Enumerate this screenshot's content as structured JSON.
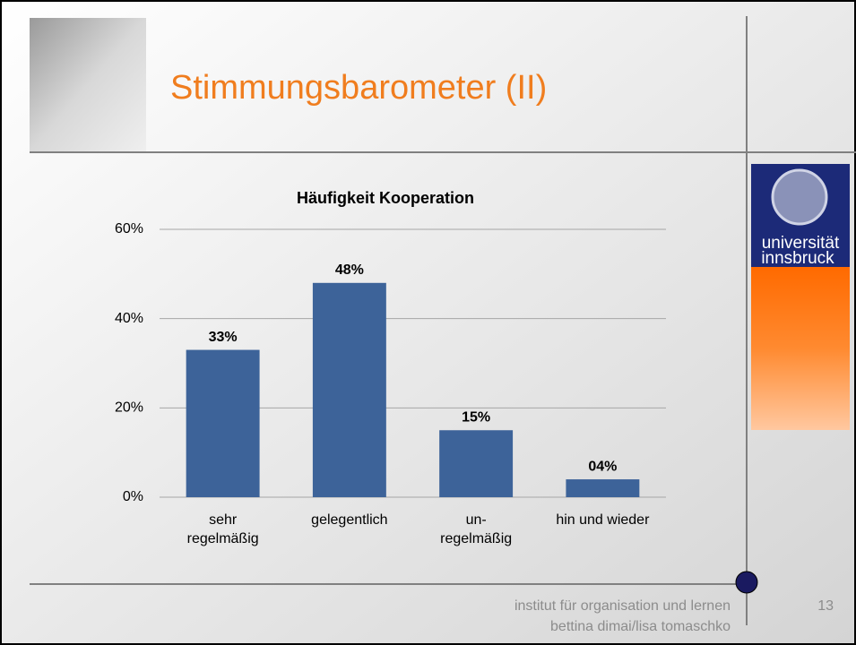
{
  "slide_title": "Stimmungsbarometer (II)",
  "logo": {
    "line1": "universität",
    "line2": "innsbruck"
  },
  "footer": {
    "line1": "institut für organisation und lernen",
    "line2": "bettina dimai/lisa tomaschko",
    "page": "13"
  },
  "chart_data": {
    "type": "bar",
    "title": "Häufigkeit Kooperation",
    "categories": [
      "sehr\nregelmäßig",
      "gelegentlich",
      "un-\nregelmäßig",
      "hin und wieder"
    ],
    "values": [
      33,
      48,
      15,
      4
    ],
    "value_labels": [
      "33%",
      "48%",
      "15%",
      "04%"
    ],
    "color": "#3d6399",
    "ylim": [
      0,
      60
    ],
    "yticks": [
      {
        "value": 0,
        "label": "0%"
      },
      {
        "value": 20,
        "label": "20%"
      },
      {
        "value": 40,
        "label": "40%"
      },
      {
        "value": 60,
        "label": "60%"
      }
    ],
    "grid": true
  }
}
